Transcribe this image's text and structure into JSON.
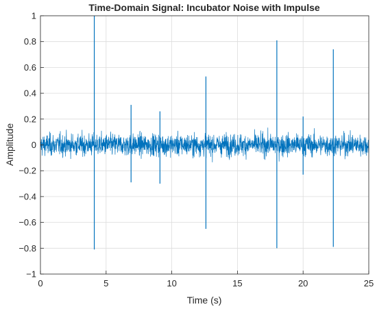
{
  "chart_data": {
    "type": "line",
    "title": "Time-Domain Signal: Incubator Noise with Impulse",
    "xlabel": "Time (s)",
    "ylabel": "Amplitude",
    "xlim": [
      0,
      25
    ],
    "ylim": [
      -1,
      1
    ],
    "grid": true,
    "line_color": "#0072BD",
    "x_ticks": [
      0,
      5,
      10,
      15,
      20,
      25
    ],
    "x_tick_labels": [
      "0",
      "5",
      "10",
      "15",
      "20",
      "25"
    ],
    "y_ticks": [
      -1,
      -0.8,
      -0.6,
      -0.4,
      -0.2,
      0,
      0.2,
      0.4,
      0.6,
      0.8,
      1
    ],
    "y_tick_labels": [
      "−1",
      "−0.8",
      "−0.6",
      "−0.4",
      "−0.2",
      "0",
      "0.2",
      "0.4",
      "0.6",
      "0.8",
      "1"
    ],
    "noise_band": [
      -0.12,
      0.12
    ],
    "impulses": [
      {
        "x": 4.1,
        "y_max": 1.0,
        "y_min": -0.81
      },
      {
        "x": 6.9,
        "y_max": 0.31,
        "y_min": -0.29
      },
      {
        "x": 9.1,
        "y_max": 0.26,
        "y_min": -0.3
      },
      {
        "x": 12.6,
        "y_max": 0.53,
        "y_min": -0.65
      },
      {
        "x": 18.0,
        "y_max": 0.81,
        "y_min": -0.8
      },
      {
        "x": 20.0,
        "y_max": 0.22,
        "y_min": -0.23
      },
      {
        "x": 22.3,
        "y_max": 0.74,
        "y_min": -0.79
      }
    ]
  }
}
